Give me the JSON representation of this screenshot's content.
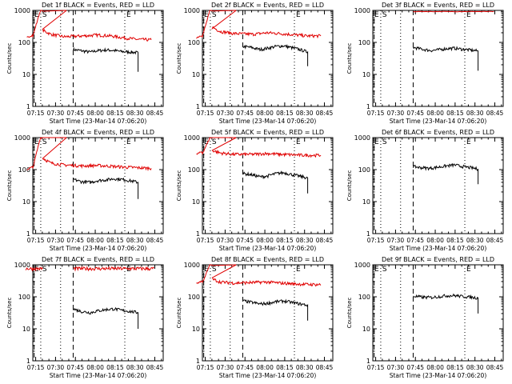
{
  "colors": {
    "events": "#000000",
    "lld": "#e00000",
    "axis": "#000000",
    "background": "#ffffff"
  },
  "shared": {
    "ylabel": "Counts/sec",
    "xlabel": "Start Time (23-Mar-14 07:06:20)",
    "xticks": [
      "07:15",
      "07:30",
      "07:45",
      "08:00",
      "08:15",
      "08:30",
      "08:45"
    ],
    "yticks": [
      "1",
      "10",
      "100",
      "1000"
    ],
    "marker_E": "E",
    "marker_S": "S",
    "marker_E_end": "E"
  },
  "chart_data": [
    {
      "type": "line",
      "title": "Det 1f BLACK = Events, RED = LLD",
      "yscale": "log",
      "ylim": [
        1,
        1000
      ],
      "xlim_min": [
        6.5,
        105
      ],
      "series": [
        {
          "name": "Events",
          "color": "#000000",
          "points": [
            [
              37,
              60
            ],
            [
              43,
              55
            ],
            [
              50,
              50
            ],
            [
              55,
              55
            ],
            [
              62,
              58
            ],
            [
              68,
              56
            ],
            [
              73,
              52
            ],
            [
              80,
              50
            ],
            [
              86,
              48
            ]
          ],
          "end_drop": 12
        },
        {
          "name": "LLD",
          "color": "#e00000",
          "spike": [
            2,
            14,
            140,
            1000
          ],
          "points": [
            [
              14,
              240
            ],
            [
              20,
              180
            ],
            [
              30,
              150
            ],
            [
              45,
              160
            ],
            [
              55,
              170
            ],
            [
              65,
              160
            ],
            [
              75,
              140
            ],
            [
              85,
              125
            ],
            [
              96,
              120
            ]
          ]
        }
      ],
      "vlines_dashed": [
        7.5,
        37
      ],
      "vlines_dotted": [
        12.5,
        27.5,
        76
      ]
    },
    {
      "type": "line",
      "title": "Det 2f BLACK = Events, RED = LLD",
      "yscale": "log",
      "ylim": [
        1,
        1000
      ],
      "xlim_min": [
        6.5,
        105
      ],
      "series": [
        {
          "name": "Events",
          "color": "#000000",
          "points": [
            [
              37,
              75
            ],
            [
              43,
              70
            ],
            [
              50,
              60
            ],
            [
              55,
              65
            ],
            [
              62,
              75
            ],
            [
              68,
              78
            ],
            [
              73,
              70
            ],
            [
              80,
              60
            ],
            [
              86,
              50
            ]
          ],
          "end_drop": 18
        },
        {
          "name": "LLD",
          "color": "#e00000",
          "spike": [
            2,
            14,
            140,
            1000
          ],
          "points": [
            [
              14,
              300
            ],
            [
              20,
              220
            ],
            [
              30,
              190
            ],
            [
              45,
              180
            ],
            [
              55,
              200
            ],
            [
              65,
              190
            ],
            [
              75,
              175
            ],
            [
              85,
              160
            ],
            [
              96,
              160
            ]
          ]
        }
      ],
      "vlines_dashed": [
        7.5,
        37
      ],
      "vlines_dotted": [
        12.5,
        27.5,
        76
      ]
    },
    {
      "type": "line",
      "title": "Det 3f BLACK = Events, RED = LLD",
      "yscale": "log",
      "ylim": [
        1,
        1000
      ],
      "xlim_min": [
        6.5,
        105
      ],
      "series": [
        {
          "name": "Events",
          "color": "#000000",
          "points": [
            [
              37,
              70
            ],
            [
              43,
              62
            ],
            [
              50,
              56
            ],
            [
              55,
              58
            ],
            [
              62,
              64
            ],
            [
              68,
              66
            ],
            [
              73,
              62
            ],
            [
              80,
              58
            ],
            [
              86,
              54
            ]
          ],
          "end_drop": 13
        },
        {
          "name": "LLD",
          "color": "#e00000",
          "flat": [
            37,
            98,
            920
          ]
        }
      ],
      "vlines_dashed": [
        7.5,
        37
      ],
      "vlines_dotted": [
        12.5,
        27.5,
        76
      ]
    },
    {
      "type": "line",
      "title": "Det 4f BLACK = Events, RED = LLD",
      "yscale": "log",
      "ylim": [
        1,
        1000
      ],
      "xlim_min": [
        6.5,
        105
      ],
      "series": [
        {
          "name": "Events",
          "color": "#000000",
          "points": [
            [
              37,
              50
            ],
            [
              43,
              42
            ],
            [
              50,
              40
            ],
            [
              55,
              45
            ],
            [
              62,
              48
            ],
            [
              68,
              52
            ],
            [
              73,
              50
            ],
            [
              80,
              45
            ],
            [
              86,
              40
            ]
          ],
          "end_drop": 12
        },
        {
          "name": "LLD",
          "color": "#e00000",
          "spike": [
            2,
            14,
            100,
            1000
          ],
          "points": [
            [
              14,
              230
            ],
            [
              20,
              160
            ],
            [
              30,
              140
            ],
            [
              45,
              130
            ],
            [
              55,
              135
            ],
            [
              65,
              128
            ],
            [
              75,
              120
            ],
            [
              85,
              115
            ],
            [
              96,
              110
            ]
          ]
        }
      ],
      "vlines_dashed": [
        7.5,
        37
      ],
      "vlines_dotted": [
        12.5,
        27.5,
        76
      ]
    },
    {
      "type": "line",
      "title": "Det 5f BLACK = Events, RED = LLD",
      "yscale": "log",
      "ylim": [
        1,
        1000
      ],
      "xlim_min": [
        6.5,
        105
      ],
      "series": [
        {
          "name": "Events",
          "color": "#000000",
          "points": [
            [
              37,
              75
            ],
            [
              43,
              70
            ],
            [
              50,
              60
            ],
            [
              55,
              62
            ],
            [
              62,
              75
            ],
            [
              68,
              80
            ],
            [
              73,
              72
            ],
            [
              80,
              62
            ],
            [
              86,
              55
            ]
          ],
          "end_drop": 18
        },
        {
          "name": "LLD",
          "color": "#e00000",
          "spike": [
            2,
            14,
            300,
            1000
          ],
          "points": [
            [
              14,
              400
            ],
            [
              20,
              330
            ],
            [
              30,
              300
            ],
            [
              45,
              300
            ],
            [
              55,
              320
            ],
            [
              65,
              300
            ],
            [
              75,
              290
            ],
            [
              85,
              280
            ],
            [
              96,
              280
            ]
          ]
        }
      ],
      "vlines_dashed": [
        7.5,
        37
      ],
      "vlines_dotted": [
        12.5,
        27.5,
        76
      ]
    },
    {
      "type": "line",
      "title": "Det 6f BLACK = Events, RED = LLD",
      "yscale": "log",
      "ylim": [
        1,
        1000
      ],
      "xlim_min": [
        6.5,
        105
      ],
      "series": [
        {
          "name": "Events",
          "color": "#000000",
          "points": [
            [
              37,
              125
            ],
            [
              43,
              115
            ],
            [
              50,
              110
            ],
            [
              55,
              118
            ],
            [
              62,
              130
            ],
            [
              68,
              140
            ],
            [
              73,
              128
            ],
            [
              80,
              115
            ],
            [
              86,
              105
            ]
          ],
          "end_drop": 35
        }
      ],
      "vlines_dashed": [
        7.5,
        37
      ],
      "vlines_dotted": [
        12.5,
        27.5,
        76
      ]
    },
    {
      "type": "line",
      "title": "Det 7f BLACK = Events, RED = LLD",
      "yscale": "log",
      "ylim": [
        1,
        1000
      ],
      "xlim_min": [
        6.5,
        105
      ],
      "series": [
        {
          "name": "Events",
          "color": "#000000",
          "points": [
            [
              37,
              42
            ],
            [
              43,
              35
            ],
            [
              50,
              32
            ],
            [
              55,
              36
            ],
            [
              62,
              40
            ],
            [
              68,
              42
            ],
            [
              73,
              38
            ],
            [
              80,
              35
            ],
            [
              86,
              32
            ]
          ],
          "end_drop": 10
        },
        {
          "name": "LLD",
          "color": "#e00000",
          "flat_noisy": [
            [
              1,
              14,
              760
            ],
            [
              37,
              98,
              760
            ]
          ]
        }
      ],
      "vlines_dashed": [
        7.5,
        37
      ],
      "vlines_dotted": [
        12.5,
        27.5,
        76
      ]
    },
    {
      "type": "line",
      "title": "Det 8f BLACK = Events, RED = LLD",
      "yscale": "log",
      "ylim": [
        1,
        1000
      ],
      "xlim_min": [
        6.5,
        105
      ],
      "series": [
        {
          "name": "Events",
          "color": "#000000",
          "points": [
            [
              37,
              75
            ],
            [
              43,
              68
            ],
            [
              50,
              60
            ],
            [
              55,
              62
            ],
            [
              62,
              70
            ],
            [
              68,
              74
            ],
            [
              73,
              68
            ],
            [
              80,
              60
            ],
            [
              86,
              55
            ]
          ],
          "end_drop": 18
        },
        {
          "name": "LLD",
          "color": "#e00000",
          "spike": [
            2,
            14,
            260,
            1000
          ],
          "points": [
            [
              14,
              360
            ],
            [
              20,
              290
            ],
            [
              30,
              270
            ],
            [
              45,
              280
            ],
            [
              55,
              290
            ],
            [
              65,
              270
            ],
            [
              75,
              255
            ],
            [
              85,
              245
            ],
            [
              96,
              240
            ]
          ]
        }
      ],
      "vlines_dashed": [
        7.5,
        37
      ],
      "vlines_dotted": [
        12.5,
        27.5,
        76
      ]
    },
    {
      "type": "line",
      "title": "Det 9f BLACK = Events, RED = LLD",
      "yscale": "log",
      "ylim": [
        1,
        1000
      ],
      "xlim_min": [
        6.5,
        105
      ],
      "series": [
        {
          "name": "Events",
          "color": "#000000",
          "points": [
            [
              37,
              105
            ],
            [
              43,
              98
            ],
            [
              50,
              95
            ],
            [
              55,
              100
            ],
            [
              62,
              108
            ],
            [
              68,
              110
            ],
            [
              73,
              104
            ],
            [
              80,
              98
            ],
            [
              86,
              92
            ]
          ],
          "end_drop": 30
        }
      ],
      "vlines_dashed": [
        7.5,
        37
      ],
      "vlines_dotted": [
        12.5,
        27.5,
        76
      ]
    }
  ]
}
